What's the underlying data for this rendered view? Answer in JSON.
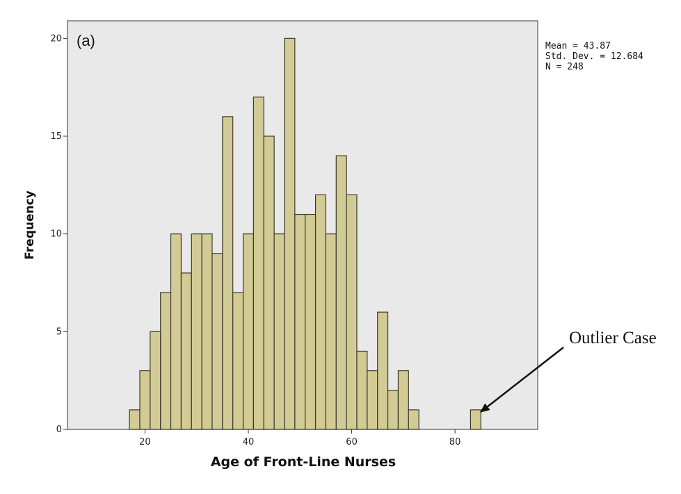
{
  "chart_data": {
    "type": "histogram",
    "panel_label": "(a)",
    "xlabel": "Age of Front-Line Nurses",
    "ylabel": "Frequency",
    "xlim": [
      5,
      96
    ],
    "ylim": [
      0,
      20.9
    ],
    "x_ticks": [
      20,
      40,
      60,
      80
    ],
    "y_ticks": [
      0,
      5,
      10,
      15,
      20
    ],
    "bin_width": 2,
    "bins": [
      {
        "start": 17,
        "count": 1
      },
      {
        "start": 19,
        "count": 3
      },
      {
        "start": 21,
        "count": 5
      },
      {
        "start": 23,
        "count": 7
      },
      {
        "start": 25,
        "count": 10
      },
      {
        "start": 27,
        "count": 8
      },
      {
        "start": 29,
        "count": 10
      },
      {
        "start": 31,
        "count": 10
      },
      {
        "start": 33,
        "count": 9
      },
      {
        "start": 35,
        "count": 16
      },
      {
        "start": 37,
        "count": 7
      },
      {
        "start": 39,
        "count": 10
      },
      {
        "start": 41,
        "count": 17
      },
      {
        "start": 43,
        "count": 15
      },
      {
        "start": 45,
        "count": 10
      },
      {
        "start": 47,
        "count": 20
      },
      {
        "start": 49,
        "count": 11
      },
      {
        "start": 51,
        "count": 11
      },
      {
        "start": 53,
        "count": 12
      },
      {
        "start": 55,
        "count": 10
      },
      {
        "start": 57,
        "count": 14
      },
      {
        "start": 59,
        "count": 12
      },
      {
        "start": 61,
        "count": 4
      },
      {
        "start": 63,
        "count": 3
      },
      {
        "start": 65,
        "count": 6
      },
      {
        "start": 67,
        "count": 2
      },
      {
        "start": 69,
        "count": 3
      },
      {
        "start": 71,
        "count": 1
      },
      {
        "start": 83,
        "count": 1
      }
    ],
    "stats": [
      "Mean = 43.87",
      "Std. Dev. = 12.684",
      "N = 248"
    ],
    "annotation": {
      "text": "Outlier Case",
      "target_x": 84,
      "target_y": 1
    },
    "colors": {
      "bar_fill": "#d2cb95",
      "bar_stroke": "#3a3a2a",
      "plot_bg": "#e9e9e9",
      "frame": "#555555"
    },
    "grid": false
  }
}
